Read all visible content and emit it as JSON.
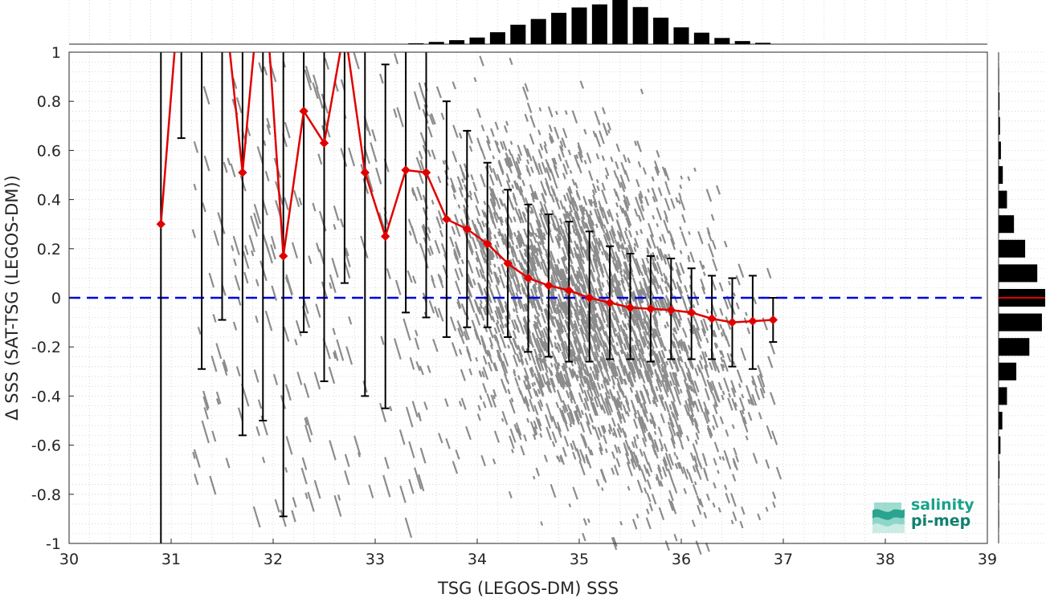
{
  "chart_data": {
    "type": "scatter",
    "xlabel": "TSG (LEGOS-DM) SSS",
    "ylabel": "Δ SSS (SAT-TSG (LEGOS-DM))",
    "xlim": [
      30,
      39
    ],
    "ylim": [
      -1,
      1
    ],
    "x_ticks": [
      "30",
      "31",
      "32",
      "33",
      "34",
      "35",
      "36",
      "37",
      "38",
      "39"
    ],
    "y_ticks": [
      "-1",
      "-0.8",
      "-0.6",
      "-0.4",
      "-0.2",
      "0",
      "0.2",
      "0.4",
      "0.6",
      "0.8",
      "1"
    ],
    "grid": "minor dotted",
    "scatter_color": "#808080",
    "zero_line": {
      "y": 0,
      "color": "#0000e0",
      "style": "dashed"
    },
    "binned_series": {
      "line_color": "#e00000",
      "errorbar_color": "#000000",
      "x": [
        30.9,
        31.1,
        31.3,
        31.5,
        31.7,
        31.9,
        32.1,
        32.3,
        32.5,
        32.7,
        32.9,
        33.1,
        33.3,
        33.5,
        33.7,
        33.9,
        34.1,
        34.3,
        34.5,
        34.7,
        34.9,
        35.1,
        35.3,
        35.5,
        35.7,
        35.9,
        36.1,
        36.3,
        36.5,
        36.7,
        36.9
      ],
      "mean": [
        0.3,
        1.35,
        1.4,
        1.3,
        0.51,
        1.4,
        0.17,
        0.76,
        0.63,
        1.1,
        0.51,
        0.25,
        0.52,
        0.51,
        0.32,
        0.28,
        0.22,
        0.14,
        0.08,
        0.05,
        0.03,
        0.0,
        -0.02,
        -0.04,
        -0.045,
        -0.05,
        -0.06,
        -0.085,
        -0.1,
        -0.095,
        -0.09
      ],
      "lower": [
        -1.05,
        0.65,
        -0.29,
        -0.09,
        -0.56,
        -0.5,
        -0.89,
        -0.14,
        -0.34,
        0.06,
        -0.4,
        -0.45,
        -0.06,
        -0.08,
        -0.16,
        -0.12,
        -0.12,
        -0.16,
        -0.22,
        -0.24,
        -0.26,
        -0.26,
        -0.25,
        -0.25,
        -0.26,
        -0.25,
        -0.25,
        -0.25,
        -0.28,
        -0.29,
        -0.18
      ],
      "upper": [
        1.1,
        1.1,
        1.1,
        1.1,
        1.1,
        1.1,
        1.1,
        1.1,
        1.1,
        1.1,
        1.1,
        0.95,
        1.1,
        1.1,
        0.8,
        0.68,
        0.55,
        0.44,
        0.38,
        0.34,
        0.31,
        0.27,
        0.21,
        0.18,
        0.17,
        0.16,
        0.12,
        0.09,
        0.08,
        0.09,
        0.0
      ]
    },
    "x_histogram": {
      "bin_centers": [
        33.4,
        33.6,
        33.8,
        34.0,
        34.2,
        34.4,
        34.6,
        34.8,
        35.0,
        35.2,
        35.4,
        35.6,
        35.8,
        36.0,
        36.2,
        36.4,
        36.6,
        36.8
      ],
      "relative_counts": [
        0.02,
        0.05,
        0.09,
        0.15,
        0.27,
        0.44,
        0.57,
        0.71,
        0.83,
        0.9,
        1.0,
        0.84,
        0.6,
        0.38,
        0.26,
        0.14,
        0.07,
        0.03
      ]
    },
    "y_histogram": {
      "bin_centers": [
        0.9,
        0.8,
        0.7,
        0.6,
        0.5,
        0.4,
        0.3,
        0.2,
        0.1,
        0.0,
        -0.1,
        -0.2,
        -0.3,
        -0.4,
        -0.5,
        -0.6,
        -0.7,
        -0.8,
        -0.9
      ],
      "relative_counts": [
        0.01,
        0.02,
        0.03,
        0.05,
        0.09,
        0.18,
        0.33,
        0.57,
        0.83,
        1.0,
        0.93,
        0.66,
        0.38,
        0.18,
        0.08,
        0.04,
        0.02,
        0.01,
        0.01
      ],
      "mean_marker_color": "#e00000"
    }
  },
  "logo": {
    "line1": "salinity",
    "line2": "pi-mep"
  }
}
